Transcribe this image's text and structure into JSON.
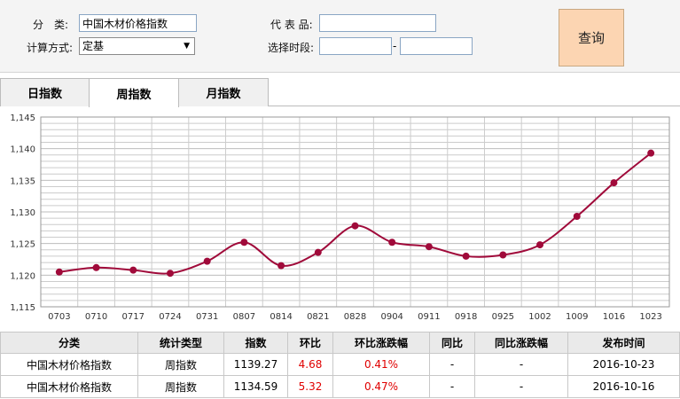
{
  "form": {
    "category_label": "分　类:",
    "category_value": "中国木材价格指数",
    "method_label": "计算方式:",
    "method_value": "定基",
    "rep_label": "代 表 品:",
    "rep_value": "",
    "period_label": "选择时段:",
    "period_start": "",
    "period_end": "",
    "period_sep": "-",
    "query_label": "查询"
  },
  "tabs": [
    {
      "label": "日指数",
      "active": false
    },
    {
      "label": "周指数",
      "active": true
    },
    {
      "label": "月指数",
      "active": false
    }
  ],
  "chart_data": {
    "type": "line",
    "title": "",
    "xlabel": "",
    "ylabel": "",
    "categories": [
      "0703",
      "0710",
      "0717",
      "0724",
      "0731",
      "0807",
      "0814",
      "0821",
      "0828",
      "0904",
      "0911",
      "0918",
      "0925",
      "1002",
      "1009",
      "1016",
      "1023"
    ],
    "series": [
      {
        "values": [
          1120.5,
          1121.2,
          1120.8,
          1120.3,
          1122.2,
          1125.2,
          1121.5,
          1123.6,
          1127.8,
          1125.2,
          1124.5,
          1123.0,
          1123.2,
          1124.8,
          1129.3,
          1134.6,
          1139.3
        ]
      }
    ],
    "ylim": [
      1115,
      1145
    ],
    "yticks": [
      "1,145",
      "1,140",
      "1,135",
      "1,130",
      "1,125",
      "1,120",
      "1,115"
    ],
    "grid": true,
    "line_color": "#a00a3a",
    "grid_color": "#cccccc"
  },
  "table": {
    "headers": [
      "分类",
      "统计类型",
      "指数",
      "环比",
      "环比涨跌幅",
      "同比",
      "同比涨跌幅",
      "发布时间"
    ],
    "rows": [
      [
        "中国木材价格指数",
        "周指数",
        "1139.27",
        "4.68",
        "0.41%",
        "-",
        "-",
        "2016-10-23"
      ],
      [
        "中国木材价格指数",
        "周指数",
        "1134.59",
        "5.32",
        "0.47%",
        "-",
        "-",
        "2016-10-16"
      ]
    ],
    "accent_red": "#e00000"
  }
}
